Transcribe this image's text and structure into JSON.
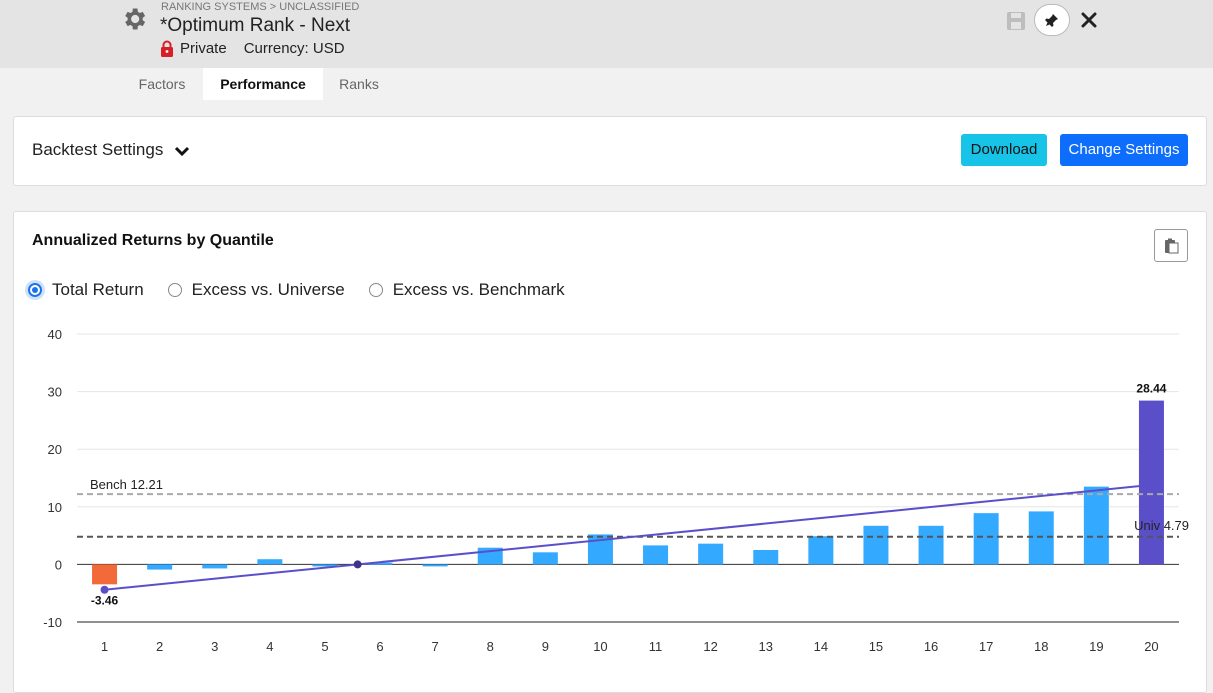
{
  "header": {
    "breadcrumb": "RANKING SYSTEMS > UNCLASSIFIED",
    "title": "*Optimum Rank - Next",
    "privacy": "Private",
    "currency": "Currency: USD",
    "icons": [
      "gear-icon",
      "lock-icon",
      "save-icon",
      "pin-icon",
      "close-icon"
    ]
  },
  "tabs": [
    {
      "label": "Factors",
      "active": false
    },
    {
      "label": "Performance",
      "active": true
    },
    {
      "label": "Ranks",
      "active": false
    }
  ],
  "backtest": {
    "label": "Backtest Settings",
    "download_label": "Download",
    "change_label": "Change Settings"
  },
  "colors": {
    "download": "#17c3e6",
    "change": "#0d6efd",
    "bar": "#33aaff",
    "bar_negative": "#f26a3a",
    "bar_top": "#5b4fc9",
    "trend": "#5b4fc9"
  },
  "chart_panel": {
    "title": "Annualized Returns by Quantile",
    "radio_options": [
      {
        "label": "Total Return",
        "selected": true
      },
      {
        "label": "Excess vs. Universe",
        "selected": false
      },
      {
        "label": "Excess vs. Benchmark",
        "selected": false
      }
    ]
  },
  "chart_data": {
    "type": "bar",
    "title": "Annualized Returns by Quantile",
    "categories": [
      "1",
      "2",
      "3",
      "4",
      "5",
      "6",
      "7",
      "8",
      "9",
      "10",
      "11",
      "12",
      "13",
      "14",
      "15",
      "16",
      "17",
      "18",
      "19",
      "20"
    ],
    "values": [
      -3.46,
      -0.9,
      -0.7,
      0.9,
      0.0,
      0.3,
      -0.3,
      2.9,
      2.1,
      5.2,
      3.3,
      3.6,
      2.5,
      4.9,
      6.7,
      6.7,
      8.9,
      9.2,
      13.5,
      28.44
    ],
    "labels": {
      "first": "-3.46",
      "last": "28.44"
    },
    "ylim": [
      -10,
      40
    ],
    "yticks": [
      "40",
      "30",
      "20",
      "10",
      "0",
      "-10"
    ],
    "reference_lines": [
      {
        "label": "Bench 12.21",
        "value": 12.21
      },
      {
        "label": "Univ 4.79",
        "value": 4.79
      }
    ],
    "trendline": {
      "start": -4.4,
      "end": 13.8
    },
    "grid": true
  }
}
